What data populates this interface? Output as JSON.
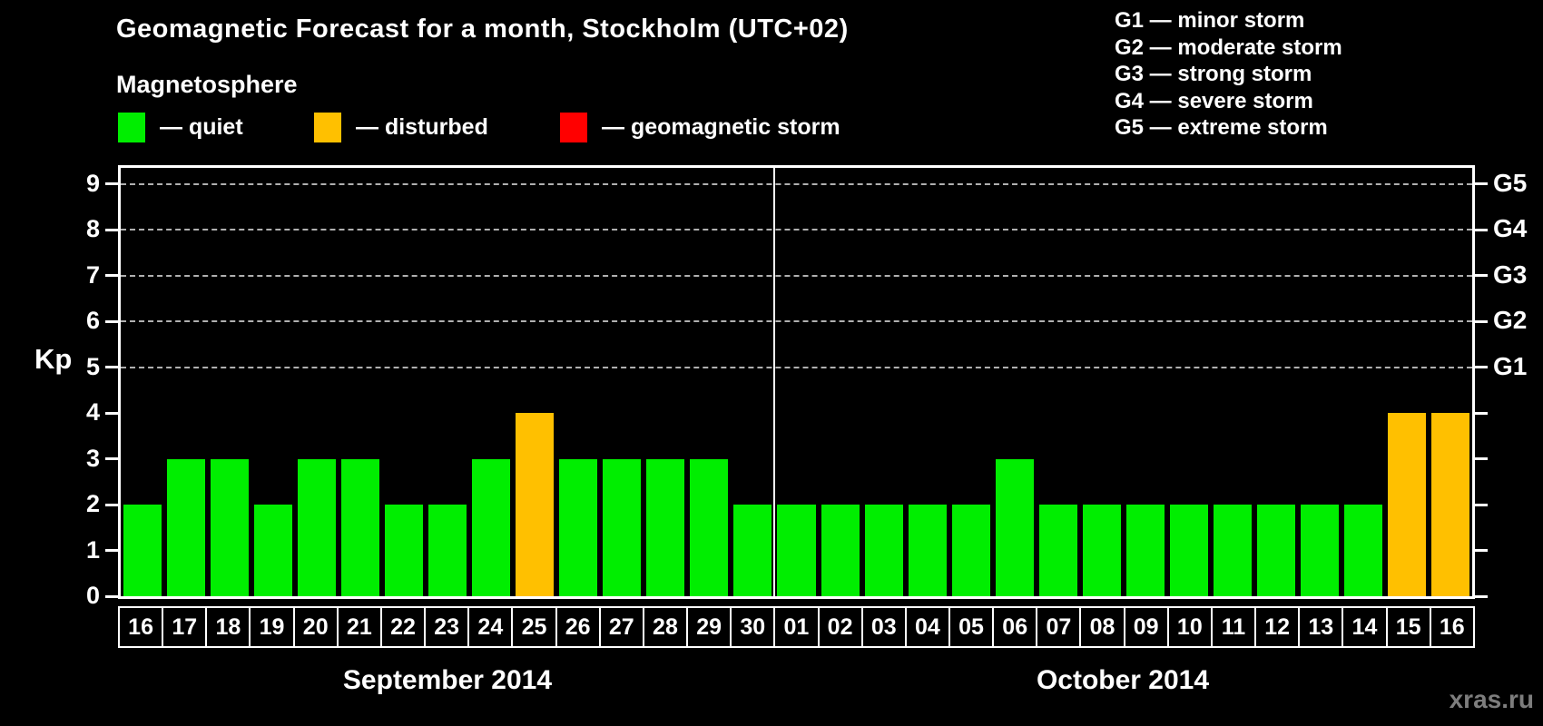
{
  "header": {
    "title": "Geomagnetic Forecast for a month, Stockholm (UTC+02)",
    "subtitle": "Magnetosphere"
  },
  "status_legend": [
    {
      "name": "quiet",
      "label": "— quiet",
      "color": "#00ee00"
    },
    {
      "name": "disturbed",
      "label": "— disturbed",
      "color": "#ffc000"
    },
    {
      "name": "geomagnetic-storm",
      "label": "— geomagnetic storm",
      "color": "#ff0000"
    }
  ],
  "g_legend": [
    "G1 — minor storm",
    "G2 — moderate storm",
    "G3 — strong storm",
    "G4 — severe storm",
    "G5 — extreme storm"
  ],
  "axis": {
    "y_label": "Kp",
    "y_ticks": [
      0,
      1,
      2,
      3,
      4,
      5,
      6,
      7,
      8,
      9
    ],
    "gridline_levels": [
      5,
      6,
      7,
      8,
      9
    ],
    "right_labels": [
      {
        "text": "G1",
        "kp": 5
      },
      {
        "text": "G2",
        "kp": 6
      },
      {
        "text": "G3",
        "kp": 7
      },
      {
        "text": "G4",
        "kp": 8
      },
      {
        "text": "G5",
        "kp": 9
      }
    ]
  },
  "months": [
    {
      "label": "September 2014",
      "days": [
        "16",
        "17",
        "18",
        "19",
        "20",
        "21",
        "22",
        "23",
        "24",
        "25",
        "26",
        "27",
        "28",
        "29",
        "30"
      ],
      "values": [
        2,
        3,
        3,
        2,
        3,
        3,
        2,
        2,
        3,
        4,
        3,
        3,
        3,
        3,
        2
      ]
    },
    {
      "label": "October 2014",
      "days": [
        "01",
        "02",
        "03",
        "04",
        "05",
        "06",
        "07",
        "08",
        "09",
        "10",
        "11",
        "12",
        "13",
        "14",
        "15",
        "16"
      ],
      "values": [
        2,
        2,
        2,
        2,
        2,
        3,
        2,
        2,
        2,
        2,
        2,
        2,
        2,
        2,
        4,
        4
      ]
    }
  ],
  "thresholds": {
    "disturbed_min_kp": 4,
    "storm_min_kp": 5
  },
  "colors": {
    "quiet": "#00ee00",
    "disturbed": "#ffc000",
    "storm": "#ff0000",
    "grid": "#b0b0b0"
  },
  "watermark": "xras.ru",
  "chart_data": {
    "type": "bar",
    "title": "Geomagnetic Forecast for a month, Stockholm (UTC+02)",
    "subtitle": "Magnetosphere",
    "xlabel": "",
    "ylabel": "Kp",
    "ylim": [
      0,
      9
    ],
    "grid": "horizontal dashed lines at Kp 5,6,7,8,9 only",
    "legend_position": "top",
    "categories": [
      "Sep 16",
      "Sep 17",
      "Sep 18",
      "Sep 19",
      "Sep 20",
      "Sep 21",
      "Sep 22",
      "Sep 23",
      "Sep 24",
      "Sep 25",
      "Sep 26",
      "Sep 27",
      "Sep 28",
      "Sep 29",
      "Sep 30",
      "Oct 01",
      "Oct 02",
      "Oct 03",
      "Oct 04",
      "Oct 05",
      "Oct 06",
      "Oct 07",
      "Oct 08",
      "Oct 09",
      "Oct 10",
      "Oct 11",
      "Oct 12",
      "Oct 13",
      "Oct 14",
      "Oct 15",
      "Oct 16"
    ],
    "values": [
      2,
      3,
      3,
      2,
      3,
      3,
      2,
      2,
      3,
      4,
      3,
      3,
      3,
      3,
      2,
      2,
      2,
      2,
      2,
      2,
      3,
      2,
      2,
      2,
      2,
      2,
      2,
      2,
      2,
      4,
      4
    ],
    "bar_status": [
      "quiet",
      "quiet",
      "quiet",
      "quiet",
      "quiet",
      "quiet",
      "quiet",
      "quiet",
      "quiet",
      "disturbed",
      "quiet",
      "quiet",
      "quiet",
      "quiet",
      "quiet",
      "quiet",
      "quiet",
      "quiet",
      "quiet",
      "quiet",
      "quiet",
      "quiet",
      "quiet",
      "quiet",
      "quiet",
      "quiet",
      "quiet",
      "quiet",
      "quiet",
      "disturbed",
      "disturbed"
    ],
    "right_axis_labels": {
      "G1": 5,
      "G2": 6,
      "G3": 7,
      "G4": 8,
      "G5": 9
    }
  }
}
